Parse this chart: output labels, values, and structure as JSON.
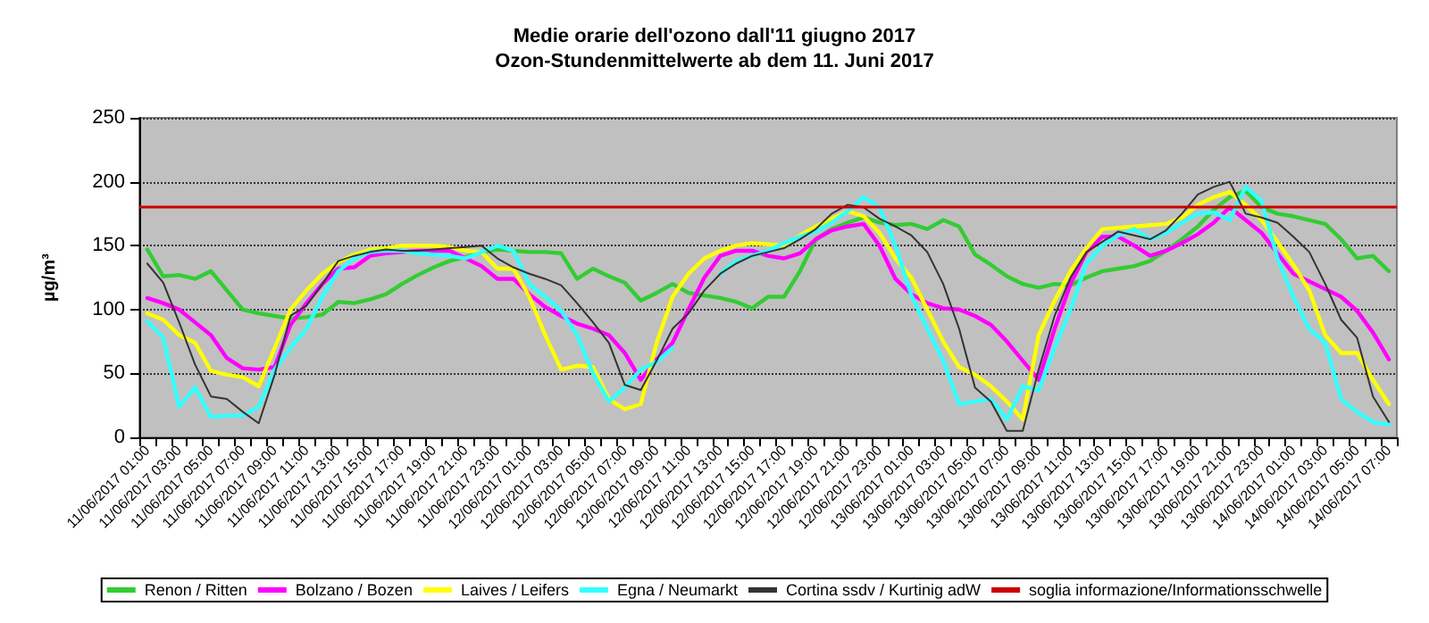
{
  "chart_data": {
    "type": "line",
    "title": "Medie orarie dell'ozono dall'11 giugno 2017",
    "subtitle": "Ozon-Stundenmittelwerte ab dem 11. Juni 2017",
    "ylabel": "µg/m³",
    "categories": [
      "11/06/2017 01:00",
      null,
      "11/06/2017 03:00",
      null,
      "11/06/2017 05:00",
      null,
      "11/06/2017 07:00",
      null,
      "11/06/2017 09:00",
      null,
      "11/06/2017 11:00",
      null,
      "11/06/2017 13:00",
      null,
      "11/06/2017 15:00",
      null,
      "11/06/2017 17:00",
      null,
      "11/06/2017 19:00",
      null,
      "11/06/2017 21:00",
      null,
      "11/06/2017 23:00",
      null,
      "12/06/2017 01:00",
      null,
      "12/06/2017 03:00",
      null,
      "12/06/2017 05:00",
      null,
      "12/06/2017 07:00",
      null,
      "12/06/2017 09:00",
      null,
      "12/06/2017 11:00",
      null,
      "12/06/2017 13:00",
      null,
      "12/06/2017 15:00",
      null,
      "12/06/2017 17:00",
      null,
      "12/06/2017 19:00",
      null,
      "12/06/2017 21:00",
      null,
      "12/06/2017 23:00",
      null,
      "13/06/2017 01:00",
      null,
      "13/06/2017 03:00",
      null,
      "13/06/2017 05:00",
      null,
      "13/06/2017 07:00",
      null,
      "13/06/2017 09:00",
      null,
      "13/06/2017 11:00",
      null,
      "13/06/2017 13:00",
      null,
      "13/06/2017 15:00",
      null,
      "13/06/2017 17:00",
      null,
      "13/06/2017 19:00",
      null,
      "13/06/2017 21:00",
      null,
      "13/06/2017 23:00",
      null,
      "14/06/2017 01:00",
      null,
      "14/06/2017 03:00",
      null,
      "14/06/2017 05:00",
      null,
      "14/06/2017 07:00"
    ],
    "series": [
      {
        "name": "Renon / Ritten",
        "color": "#33cc33",
        "values": [
          147,
          126,
          127,
          124,
          130,
          115,
          100,
          97,
          95,
          93,
          94,
          96,
          106,
          105,
          108,
          112,
          120,
          127,
          133,
          138,
          141,
          145,
          147,
          146,
          145,
          145,
          144,
          124,
          132,
          126,
          121,
          107,
          113,
          120,
          113,
          111,
          109,
          106,
          101,
          110,
          110,
          130,
          155,
          163,
          168,
          172,
          168,
          166,
          167,
          163,
          170,
          165,
          143,
          135,
          126,
          120,
          117,
          120,
          119,
          125,
          130,
          132,
          134,
          138,
          146,
          155,
          165,
          178,
          188,
          193,
          180,
          175,
          173,
          170,
          167,
          155,
          140,
          142,
          130
        ]
      },
      {
        "name": "Bolzano / Bozen",
        "color": "#ff00ff",
        "values": [
          109,
          105,
          100,
          90,
          80,
          62,
          54,
          53,
          55,
          88,
          105,
          120,
          132,
          133,
          142,
          144,
          145,
          146,
          146,
          146,
          140,
          134,
          124,
          124,
          112,
          102,
          95,
          89,
          85,
          80,
          66,
          45,
          61,
          74,
          100,
          125,
          142,
          146,
          146,
          142,
          140,
          144,
          155,
          162,
          165,
          167,
          150,
          124,
          112,
          105,
          101,
          100,
          95,
          88,
          75,
          60,
          45,
          85,
          120,
          145,
          157,
          157,
          150,
          142,
          146,
          152,
          159,
          168,
          180,
          170,
          160,
          144,
          128,
          122,
          116,
          110,
          99,
          82,
          61
        ]
      },
      {
        "name": "Laives / Leifers",
        "color": "#ffff00",
        "values": [
          97,
          92,
          80,
          74,
          52,
          49,
          47,
          40,
          70,
          100,
          115,
          128,
          137,
          143,
          147,
          148,
          150,
          150,
          150,
          149,
          146,
          145,
          132,
          132,
          110,
          80,
          53,
          56,
          55,
          30,
          22,
          26,
          74,
          110,
          128,
          140,
          146,
          150,
          152,
          151,
          150,
          158,
          165,
          171,
          177,
          173,
          160,
          140,
          125,
          100,
          75,
          55,
          49,
          40,
          28,
          14,
          80,
          107,
          130,
          148,
          163,
          164,
          165,
          166,
          167,
          172,
          182,
          188,
          192,
          182,
          170,
          153,
          135,
          115,
          80,
          66,
          66,
          45,
          26
        ]
      },
      {
        "name": "Egna / Neumarkt",
        "color": "#33ffff",
        "values": [
          91,
          78,
          24,
          39,
          16,
          17,
          17,
          24,
          53,
          70,
          85,
          110,
          130,
          140,
          145,
          146,
          146,
          144,
          143,
          142,
          140,
          145,
          150,
          146,
          120,
          110,
          99,
          80,
          50,
          28,
          39,
          53,
          59,
          70,
          null,
          null,
          128,
          138,
          142,
          146,
          152,
          157,
          161,
          168,
          177,
          188,
          180,
          150,
          111,
          85,
          60,
          26,
          28,
          30,
          14,
          40,
          37,
          70,
          100,
          136,
          150,
          158,
          163,
          155,
          160,
          168,
          175,
          176,
          170,
          196,
          185,
          140,
          110,
          85,
          74,
          30,
          20,
          12,
          10
        ]
      },
      {
        "name": "Cortina ssdv / Kurtinig adW",
        "color": "#333333",
        "values": [
          136,
          121,
          90,
          57,
          32,
          30,
          20,
          11,
          49,
          95,
          103,
          120,
          138,
          142,
          145,
          147,
          146,
          146,
          147,
          148,
          149,
          150,
          140,
          133,
          128,
          124,
          119,
          105,
          90,
          74,
          41,
          37,
          60,
          85,
          97,
          115,
          128,
          136,
          142,
          145,
          148,
          155,
          163,
          175,
          182,
          180,
          171,
          165,
          158,
          145,
          120,
          85,
          39,
          28,
          5,
          5,
          53,
          95,
          125,
          145,
          153,
          161,
          158,
          155,
          162,
          175,
          190,
          196,
          200,
          175,
          172,
          168,
          157,
          145,
          120,
          92,
          78,
          32,
          12
        ]
      }
    ],
    "ref_lines": [
      {
        "axis": "y",
        "value": 180,
        "label": "soglia informazione/Informationsschwelle",
        "color": "#cc0000"
      }
    ],
    "ylim": [
      0,
      250
    ],
    "yticks": [
      0,
      50,
      100,
      150,
      200,
      250
    ],
    "grid": "y",
    "legend": "bottom",
    "marker": "none",
    "line_style": "solid"
  }
}
